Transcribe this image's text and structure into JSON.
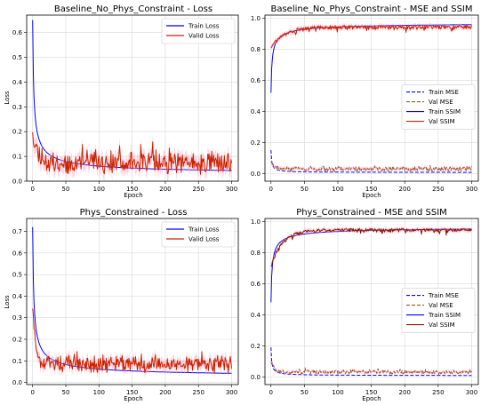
{
  "chart_data": [
    {
      "type": "line",
      "title": "Baseline_No_Phys_Constraint - Loss",
      "xlabel": "Epoch",
      "ylabel": "Loss",
      "xlim": [
        -9,
        310
      ],
      "ylim": [
        0.0,
        0.67
      ],
      "xticks": [
        0,
        50,
        100,
        150,
        200,
        250,
        300
      ],
      "yticks": [
        0.0,
        0.1,
        0.2,
        0.3,
        0.4,
        0.5,
        0.6
      ],
      "ytick_labels": [
        "0.0",
        "0.1",
        "0.2",
        "0.3",
        "0.4",
        "0.5",
        "0.6"
      ],
      "grid": true,
      "legend_position": "top-right",
      "series": [
        {
          "name": "Train Loss",
          "color": "#0000ff",
          "style": "solid",
          "model": "decay",
          "params": {
            "a": 0.65,
            "c": 0.025,
            "p": 0.62
          }
        },
        {
          "name": "Valid Loss",
          "color": "#cc2200",
          "style": "solid",
          "model": "noisy",
          "params": {
            "a": 0.21,
            "c": 0.07,
            "k": 0.15,
            "noise": 0.035,
            "seed": 11
          },
          "band": "#ff9fbf"
        }
      ]
    },
    {
      "type": "line",
      "title": "Baseline_No_Phys_Constraint - MSE and SSIM",
      "xlabel": "Epoch",
      "ylabel": "",
      "xlim": [
        -9,
        310
      ],
      "ylim": [
        -0.05,
        1.02
      ],
      "xticks": [
        0,
        50,
        100,
        150,
        200,
        250,
        300
      ],
      "yticks": [
        0.0,
        0.2,
        0.4,
        0.6,
        0.8,
        1.0
      ],
      "ytick_labels": [
        "0.0",
        "0.2",
        "0.4",
        "0.6",
        "0.8",
        "1.0"
      ],
      "grid": true,
      "legend_position": "center-right",
      "series": [
        {
          "name": "Train MSE",
          "color": "#0000ff",
          "style": "dashed",
          "model": "decay",
          "params": {
            "a": 0.15,
            "c": 0.006,
            "p": 0.9
          }
        },
        {
          "name": "Val MSE",
          "color": "#a0522d",
          "style": "dashed",
          "model": "noisy",
          "params": {
            "a": 0.08,
            "c": 0.028,
            "k": 0.2,
            "noise": 0.012,
            "seed": 23
          },
          "band": "#ff9fbf"
        },
        {
          "name": "Train SSIM",
          "color": "#0000ff",
          "style": "solid",
          "model": "rise",
          "params": {
            "a": 0.52,
            "c": 0.975,
            "p": 0.58
          }
        },
        {
          "name": "Val SSIM",
          "color": "#cc2200",
          "style": "solid",
          "model": "noisyrise",
          "params": {
            "a": 0.82,
            "c": 0.955,
            "k": 0.05,
            "noise": 0.018,
            "seed": 37
          },
          "band": "#ff9fbf"
        }
      ]
    },
    {
      "type": "line",
      "title": "Phys_Constrained - Loss",
      "xlabel": "Epoch",
      "ylabel": "Loss",
      "xlim": [
        -9,
        310
      ],
      "ylim": [
        -0.01,
        0.76
      ],
      "xticks": [
        0,
        50,
        100,
        150,
        200,
        250,
        300
      ],
      "yticks": [
        0.0,
        0.1,
        0.2,
        0.3,
        0.4,
        0.5,
        0.6,
        0.7
      ],
      "ytick_labels": [
        "0.0",
        "0.1",
        "0.2",
        "0.3",
        "0.4",
        "0.5",
        "0.6",
        "0.7"
      ],
      "grid": true,
      "legend_position": "top-right",
      "series": [
        {
          "name": "Train Loss",
          "color": "#0000ff",
          "style": "solid",
          "model": "decay",
          "params": {
            "a": 0.72,
            "c": 0.022,
            "p": 0.62
          }
        },
        {
          "name": "Valid Loss",
          "color": "#cc2200",
          "style": "solid",
          "model": "noisy",
          "params": {
            "a": 0.35,
            "c": 0.08,
            "k": 0.2,
            "noise": 0.03,
            "seed": 53
          },
          "band": "#ff9fbf"
        }
      ]
    },
    {
      "type": "line",
      "title": "Phys_Constrained - MSE and SSIM",
      "xlabel": "Epoch",
      "ylabel": "",
      "xlim": [
        -9,
        310
      ],
      "ylim": [
        -0.05,
        1.02
      ],
      "xticks": [
        0,
        50,
        100,
        150,
        200,
        250,
        300
      ],
      "yticks": [
        0.0,
        0.2,
        0.4,
        0.6,
        0.8,
        1.0
      ],
      "ytick_labels": [
        "0.0",
        "0.2",
        "0.4",
        "0.6",
        "0.8",
        "1.0"
      ],
      "grid": true,
      "legend_position": "center-right",
      "series": [
        {
          "name": "Train MSE",
          "color": "#0000ff",
          "style": "dashed",
          "model": "decay",
          "params": {
            "a": 0.19,
            "c": 0.008,
            "p": 0.9
          }
        },
        {
          "name": "Val MSE",
          "color": "#a0522d",
          "style": "dashed",
          "model": "noisy",
          "params": {
            "a": 0.1,
            "c": 0.03,
            "k": 0.2,
            "noise": 0.01,
            "seed": 71
          },
          "band": "#ff9fbf"
        },
        {
          "name": "Train SSIM",
          "color": "#0000ff",
          "style": "solid",
          "model": "rise",
          "params": {
            "a": 0.48,
            "c": 0.97,
            "p": 0.58
          }
        },
        {
          "name": "Val SSIM",
          "color": "#8b1a00",
          "style": "solid",
          "model": "noisyrise",
          "params": {
            "a": 0.72,
            "c": 0.955,
            "k": 0.06,
            "noise": 0.016,
            "seed": 89
          },
          "band": "#ff9fbf"
        }
      ]
    }
  ]
}
